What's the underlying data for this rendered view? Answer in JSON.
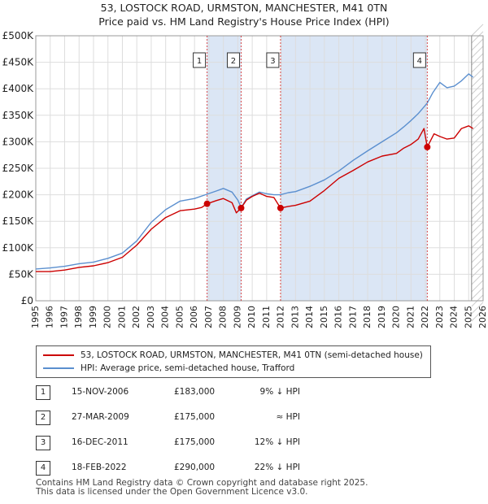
{
  "title_line1": "53, LOSTOCK ROAD, URMSTON, MANCHESTER, M41 0TN",
  "title_line2": "Price paid vs. HM Land Registry's House Price Index (HPI)",
  "colors": {
    "price": "#cc0000",
    "hpi": "#5b8fcf",
    "band": "#dbe6f5",
    "grid": "#dddddd"
  },
  "chart_data": {
    "type": "line",
    "title": "53, LOSTOCK ROAD, URMSTON, MANCHESTER, M41 0TN — Price paid vs. HM Land Registry's House Price Index (HPI)",
    "xlabel": "",
    "ylabel": "",
    "xlim": [
      1995,
      2026
    ],
    "ylim": [
      0,
      500000
    ],
    "x_ticks": [
      "1995",
      "1996",
      "1997",
      "1998",
      "1999",
      "2000",
      "2001",
      "2002",
      "2003",
      "2004",
      "2005",
      "2006",
      "2007",
      "2008",
      "2009",
      "2010",
      "2011",
      "2012",
      "2013",
      "2014",
      "2015",
      "2016",
      "2017",
      "2018",
      "2019",
      "2020",
      "2021",
      "2022",
      "2023",
      "2024",
      "2025",
      "2026"
    ],
    "y_ticks": [
      {
        "value": 0,
        "label": "£0"
      },
      {
        "value": 50000,
        "label": "£50K"
      },
      {
        "value": 100000,
        "label": "£100K"
      },
      {
        "value": 150000,
        "label": "£150K"
      },
      {
        "value": 200000,
        "label": "£200K"
      },
      {
        "value": 250000,
        "label": "£250K"
      },
      {
        "value": 300000,
        "label": "£300K"
      },
      {
        "value": 350000,
        "label": "£350K"
      },
      {
        "value": 400000,
        "label": "£400K"
      },
      {
        "value": 450000,
        "label": "£450K"
      },
      {
        "value": 500000,
        "label": "£500K"
      }
    ],
    "grid": true,
    "series": [
      {
        "name": "53, LOSTOCK ROAD, URMSTON, MANCHESTER, M41 0TN (semi-detached house)",
        "color": "#cc0000",
        "x": [
          1995.0,
          1996.0,
          1997.0,
          1998.0,
          1999.0,
          2000.0,
          2001.0,
          2002.0,
          2003.0,
          2004.0,
          2005.0,
          2006.0,
          2006.5,
          2006.87,
          2007.5,
          2008.0,
          2008.6,
          2008.9,
          2009.23,
          2009.6,
          2010.0,
          2010.5,
          2011.0,
          2011.5,
          2011.96,
          2012.5,
          2013.0,
          2014.0,
          2015.0,
          2016.0,
          2017.0,
          2018.0,
          2019.0,
          2020.0,
          2020.5,
          2021.0,
          2021.5,
          2021.9,
          2022.13,
          2022.6,
          2023.0,
          2023.5,
          2024.0,
          2024.5,
          2025.0,
          2025.3
        ],
        "y": [
          55000,
          55000,
          58000,
          63000,
          66000,
          72000,
          82000,
          105000,
          135000,
          157000,
          170000,
          173000,
          176000,
          183000,
          189000,
          193000,
          185000,
          166000,
          175000,
          190000,
          197000,
          203000,
          197000,
          195000,
          175000,
          178000,
          180000,
          188000,
          208000,
          231000,
          246000,
          262000,
          273000,
          278000,
          288000,
          295000,
          305000,
          325000,
          290000,
          315000,
          310000,
          305000,
          307000,
          325000,
          330000,
          325000
        ]
      },
      {
        "name": "HPI: Average price, semi-detached house, Trafford",
        "color": "#5b8fcf",
        "x": [
          1995.0,
          1996.0,
          1997.0,
          1998.0,
          1999.0,
          2000.0,
          2001.0,
          2002.0,
          2003.0,
          2004.0,
          2005.0,
          2006.0,
          2006.87,
          2007.5,
          2008.0,
          2008.6,
          2009.0,
          2009.23,
          2009.6,
          2010.0,
          2010.5,
          2011.0,
          2011.5,
          2011.96,
          2012.5,
          2013.0,
          2014.0,
          2015.0,
          2016.0,
          2017.0,
          2018.0,
          2019.0,
          2020.0,
          2020.5,
          2021.0,
          2021.5,
          2022.13,
          2022.5,
          2023.0,
          2023.5,
          2024.0,
          2024.5,
          2025.0,
          2025.3
        ],
        "y": [
          60000,
          62000,
          65000,
          70000,
          73000,
          80000,
          90000,
          113000,
          148000,
          172000,
          188000,
          193000,
          201000,
          207000,
          212000,
          205000,
          190000,
          176000,
          192000,
          198000,
          205000,
          202000,
          200000,
          200000,
          204000,
          206000,
          216000,
          228000,
          245000,
          265000,
          283000,
          300000,
          317000,
          328000,
          340000,
          353000,
          373000,
          392000,
          412000,
          402000,
          405000,
          415000,
          428000,
          422000
        ]
      }
    ],
    "annotations": [
      {
        "label": "1",
        "x": 2006.87,
        "y": 183000
      },
      {
        "label": "2",
        "x": 2009.23,
        "y": 175000
      },
      {
        "label": "3",
        "x": 2011.96,
        "y": 175000
      },
      {
        "label": "4",
        "x": 2022.13,
        "y": 290000
      }
    ],
    "legend_position": "bottom"
  },
  "legend": {
    "price": "53, LOSTOCK ROAD, URMSTON, MANCHESTER, M41 0TN (semi-detached house)",
    "hpi": "HPI: Average price, semi-detached house, Trafford"
  },
  "transactions": [
    {
      "num": "1",
      "date": "15-NOV-2006",
      "price": "£183,000",
      "hpi": "9% ↓ HPI"
    },
    {
      "num": "2",
      "date": "27-MAR-2009",
      "price": "£175,000",
      "hpi": "≈ HPI"
    },
    {
      "num": "3",
      "date": "16-DEC-2011",
      "price": "£175,000",
      "hpi": "12% ↓ HPI"
    },
    {
      "num": "4",
      "date": "18-FEB-2022",
      "price": "£290,000",
      "hpi": "22% ↓ HPI"
    }
  ],
  "footer_line1": "Contains HM Land Registry data © Crown copyright and database right 2025.",
  "footer_line2": "This data is licensed under the Open Government Licence v3.0."
}
